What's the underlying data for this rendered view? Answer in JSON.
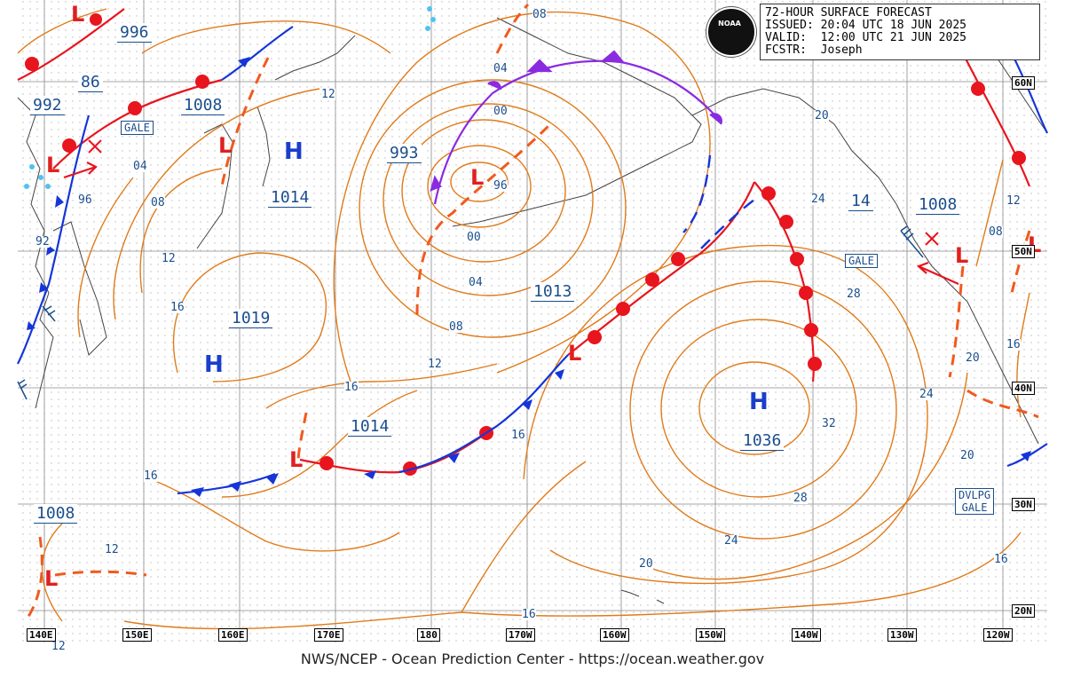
{
  "header": {
    "line1": "72-HOUR SURFACE FORECAST",
    "line2": "ISSUED: 20:04 UTC 18 JUN 2025",
    "line3": "VALID:  12:00 UTC 21 JUN 2025",
    "line4": "FCSTR:  Joseph"
  },
  "logo_text": "NOAA",
  "footer": "NWS/NCEP - Ocean Prediction Center - https://ocean.weather.gov",
  "longitude_labels": [
    "140E",
    "150E",
    "160E",
    "170E",
    "180",
    "170W",
    "160W",
    "150W",
    "140W",
    "130W",
    "120W"
  ],
  "latitude_labels": [
    "60N",
    "50N",
    "40N",
    "30N",
    "20N"
  ],
  "pressure_centers": {
    "p996_nw": "996",
    "p86": "86",
    "p992": "992",
    "p1008_n": "1008",
    "p1014_w": "1014",
    "p993": "993",
    "p1019": "1019",
    "p1013": "1013",
    "p1014_s": "1014",
    "p1036": "1036",
    "p1008_sw": "1008",
    "p14": "14",
    "p1008_e": "1008"
  },
  "high_symbol": "H",
  "low_symbol": "L",
  "warnings": {
    "gale_w": "GALE",
    "gale_e": "GALE",
    "dvlpg_line1": "DVLPG",
    "dvlpg_line2": "GALE"
  },
  "isobar_labels": [
    "08",
    "04",
    "00",
    "96",
    "00",
    "04",
    "08",
    "12",
    "12",
    "04",
    "08",
    "12",
    "16",
    "16",
    "16",
    "16",
    "16",
    "12",
    "12",
    "92",
    "96",
    "20",
    "24",
    "28",
    "32",
    "28",
    "24",
    "20",
    "16",
    "24",
    "20",
    "20",
    "16",
    "12",
    "08",
    "12"
  ],
  "colors": {
    "isobar": "#e07b1a",
    "cold_front": "#1535d8",
    "warm_front": "#e8141e",
    "occluded_front": "#8b2be0",
    "trough": "#f05a1e",
    "text_blue": "#1a4e8c",
    "grid": "#7f7f7f",
    "coast": "#555555"
  }
}
